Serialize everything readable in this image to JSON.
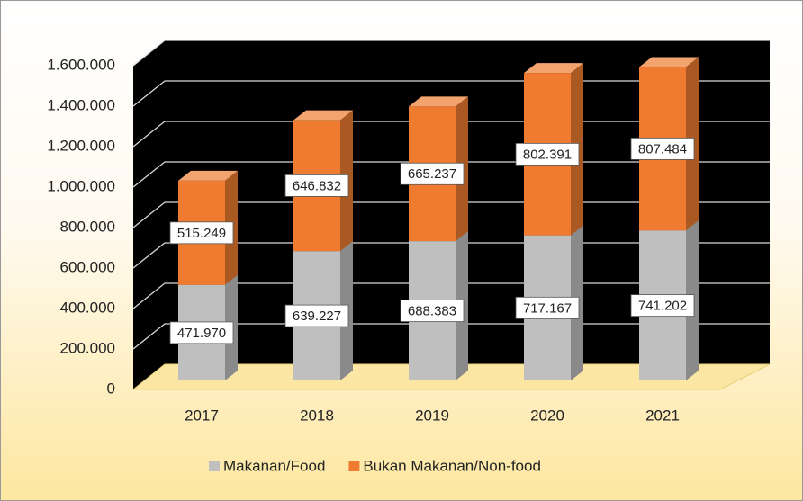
{
  "chart_data": {
    "type": "bar3d_stacked",
    "categories": [
      "2017",
      "2018",
      "2019",
      "2020",
      "2021"
    ],
    "series": [
      {
        "name": "Makanan/Food",
        "color": "#bfbfbf",
        "values": [
          471970,
          639227,
          688383,
          717167,
          741202
        ],
        "value_labels": [
          "471.970",
          "639.227",
          "688.383",
          "717.167",
          "741.202"
        ]
      },
      {
        "name": "Bukan Makanan/Non-food",
        "color": "#ee7b30",
        "values": [
          515249,
          646832,
          665237,
          802391,
          807484
        ],
        "value_labels": [
          "515.249",
          "646.832",
          "665.237",
          "802.391",
          "807.484"
        ]
      }
    ],
    "ylim": [
      0,
      1600000
    ],
    "yticks": [
      0,
      {
        "value": 200000,
        "label": "200.000"
      },
      {
        "value": 400000,
        "label": "400.000"
      },
      {
        "value": 600000,
        "label": "600.000"
      },
      {
        "value": 800000,
        "label": "800.000"
      },
      {
        "value": 1000000,
        "label": "1.000.000"
      },
      {
        "value": 1200000,
        "label": "1.200.000"
      },
      {
        "value": 1400000,
        "label": "1.400.000"
      },
      {
        "value": 1600000,
        "label": "1.600.000"
      }
    ],
    "grid": true,
    "legend": "bottom"
  }
}
